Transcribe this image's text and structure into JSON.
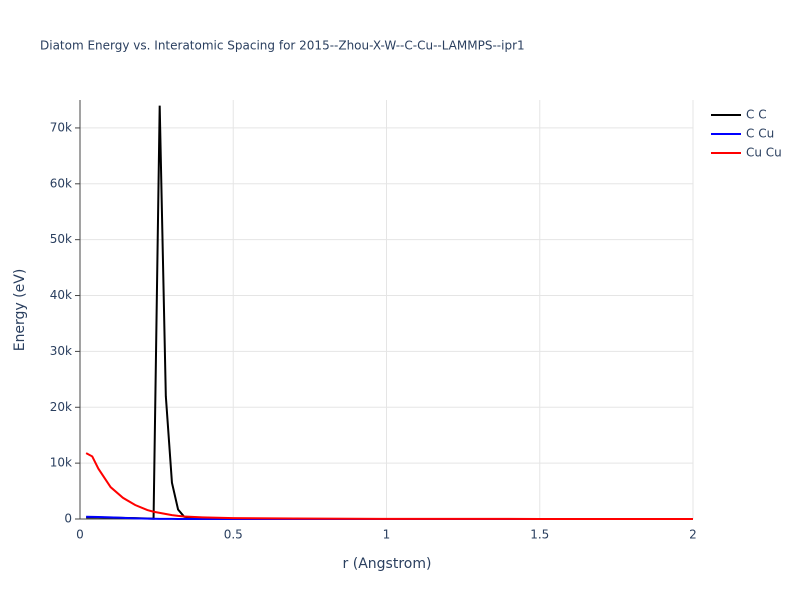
{
  "chart_data": {
    "type": "line",
    "title": "Diatom Energy vs. Interatomic Spacing for 2015--Zhou-X-W--C-Cu--LAMMPS--ipr1",
    "x_label": "r (Angstrom)",
    "y_label": "Energy (eV)",
    "x": [
      0.02,
      0.04,
      0.06,
      0.1,
      0.14,
      0.18,
      0.22,
      0.24,
      0.26,
      0.28,
      0.3,
      0.32,
      0.34,
      0.4,
      0.5,
      0.7,
      1,
      1.5,
      2
    ],
    "series": [
      {
        "name": "C C",
        "color": "#000000",
        "values": [
          300,
          300,
          300,
          250,
          200,
          150,
          100,
          50,
          74000,
          22000,
          6500,
          1700,
          400,
          100,
          30,
          10,
          5,
          2,
          0
        ]
      },
      {
        "name": "C Cu",
        "color": "#0000ff",
        "values": [
          400,
          380,
          350,
          300,
          200,
          120,
          60,
          40,
          30,
          20,
          15,
          10,
          8,
          5,
          2,
          1,
          0,
          0,
          0
        ]
      },
      {
        "name": "Cu Cu",
        "color": "#ff0000",
        "values": [
          11800,
          11200,
          9000,
          5700,
          3800,
          2500,
          1600,
          1300,
          1100,
          900,
          700,
          550,
          450,
          300,
          150,
          80,
          30,
          10,
          5
        ]
      }
    ],
    "xlim": [
      0,
      2
    ],
    "xticks": [
      0,
      0.5,
      1,
      1.5,
      2
    ],
    "ylim": [
      0,
      75000
    ],
    "yticks": [
      0,
      {
        "value": 10000,
        "label": "10k"
      },
      {
        "value": 20000,
        "label": "20k"
      },
      {
        "value": 30000,
        "label": "30k"
      },
      {
        "value": 40000,
        "label": "40k"
      },
      {
        "value": 50000,
        "label": "50k"
      },
      {
        "value": 60000,
        "label": "60k"
      },
      {
        "value": 70000,
        "label": "70k"
      }
    ],
    "grid": true
  }
}
